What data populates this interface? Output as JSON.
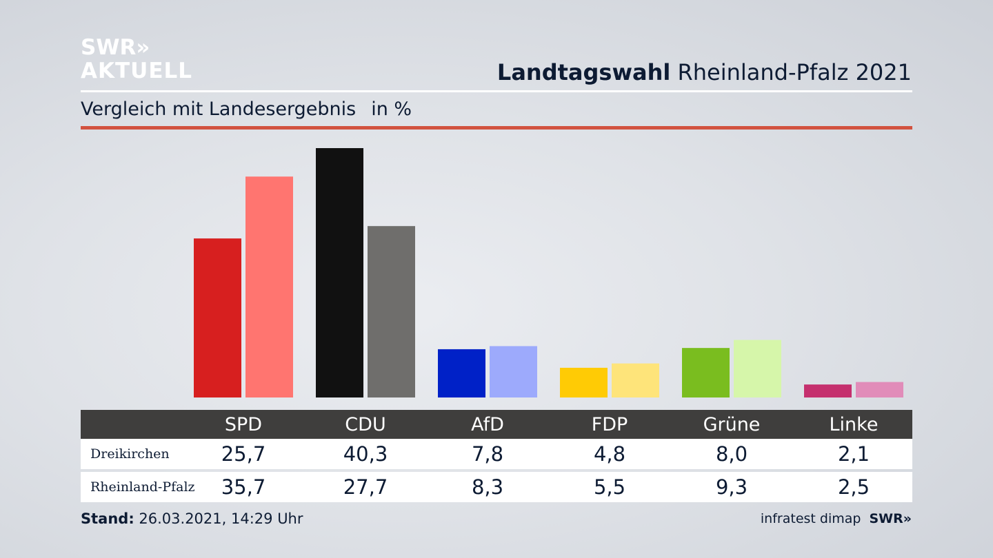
{
  "logo": {
    "line1": "SWR»",
    "line2": "AKTUELL"
  },
  "header": {
    "title_bold": "Landtagswahl",
    "title_rest": "Rheinland-Pfalz 2021"
  },
  "subtitle": {
    "text": "Vergleich mit Landesergebnis",
    "unit": "in %"
  },
  "chart_data": {
    "type": "bar",
    "title": "Landtagswahl Rheinland-Pfalz 2021",
    "subtitle": "Vergleich mit Landesergebnis in %",
    "categories": [
      "SPD",
      "CDU",
      "AfD",
      "FDP",
      "Grüne",
      "Linke"
    ],
    "series": [
      {
        "name": "Dreikirchen",
        "values": [
          25.7,
          40.3,
          7.8,
          4.8,
          8.0,
          2.1
        ],
        "display": [
          "25,7",
          "40,3",
          "7,8",
          "4,8",
          "8,0",
          "2,1"
        ],
        "colors": [
          "#d71f1f",
          "#111111",
          "#0021c7",
          "#ffcb05",
          "#7abd1f",
          "#c5306e"
        ]
      },
      {
        "name": "Rheinland-Pfalz",
        "values": [
          35.7,
          27.7,
          8.3,
          5.5,
          9.3,
          2.5
        ],
        "display": [
          "35,7",
          "27,7",
          "8,3",
          "5,5",
          "9,3",
          "2,5"
        ],
        "colors": [
          "#ff7570",
          "#6f6e6c",
          "#9daafc",
          "#fee47a",
          "#d6f6aa",
          "#e18cb9"
        ]
      }
    ],
    "ylim": [
      0,
      40.3
    ],
    "grid": false,
    "legend": "table-below"
  },
  "footer": {
    "stand_label": "Stand:",
    "stand_value": "26.03.2021, 14:29 Uhr",
    "source": "infratest dimap",
    "source_logo": "SWR»"
  }
}
